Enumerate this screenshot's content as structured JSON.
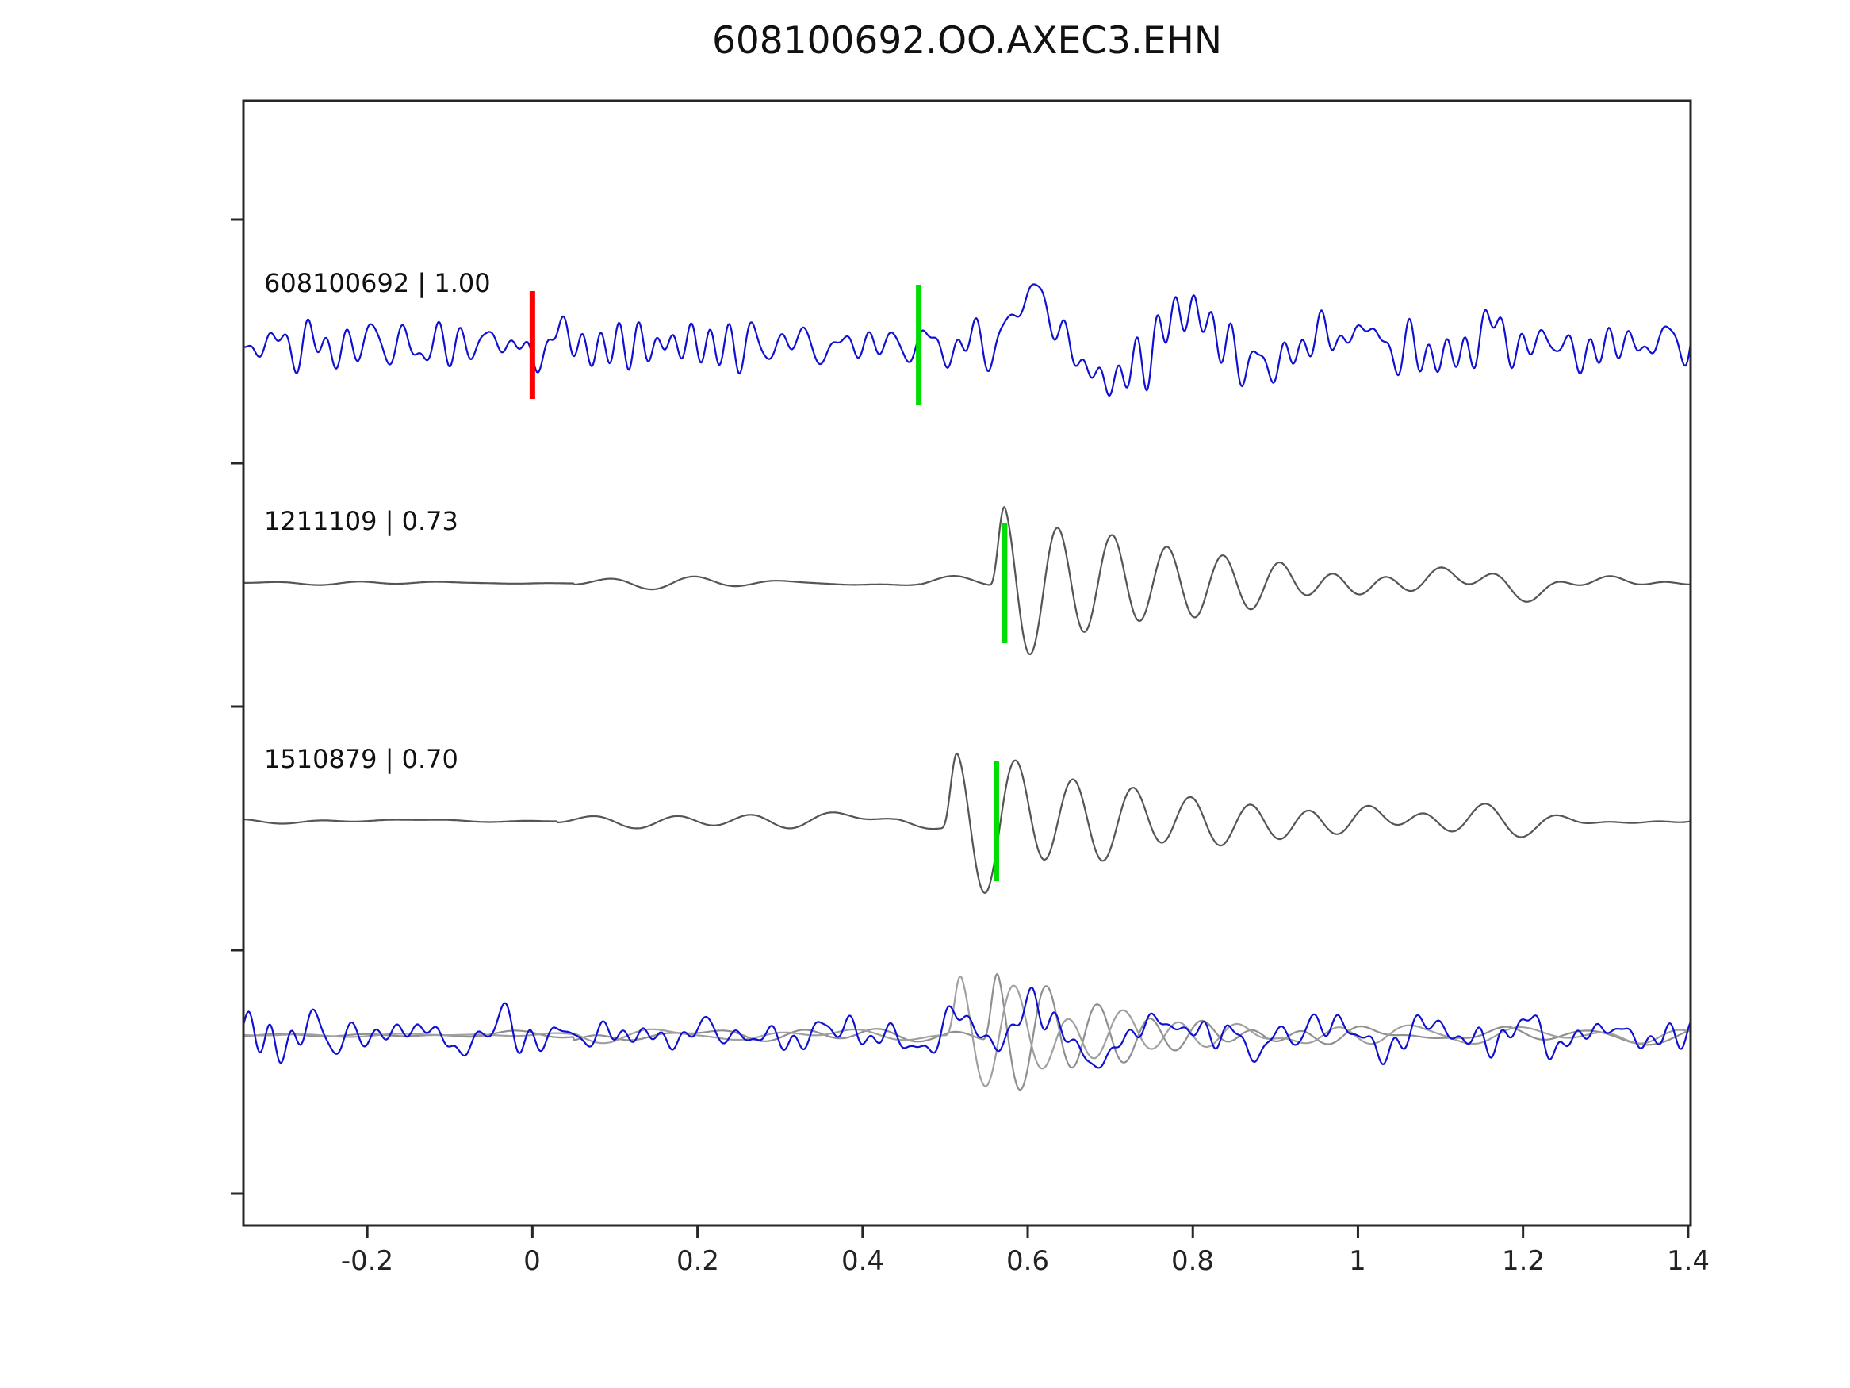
{
  "header": {
    "title": "608100692.OO.AXEC3.EHN"
  },
  "chart_data": {
    "type": "line",
    "title": "608100692.OO.AXEC3.EHN",
    "subtitle": "",
    "xlabel": "",
    "ylabel": "",
    "xlim": [
      -0.35,
      1.403
    ],
    "x_ticks": [
      -0.2,
      0,
      0.2,
      0.4,
      0.6,
      0.8,
      1,
      1.2,
      1.4
    ],
    "x_tick_labels": [
      "-0.2",
      "0",
      "0.2",
      "0.4",
      "0.6",
      "0.8",
      "1",
      "1.2",
      "1.4"
    ],
    "grid": false,
    "legend": "none",
    "colors": {
      "target_trace": "#1010d0",
      "template_trace": "#555555",
      "origin_pick": "#ff0000",
      "phase_pick": "#00dd00",
      "axis": "#262626"
    },
    "traces": [
      {
        "label": "608100692 | 1.00",
        "correlation": "1.00",
        "event_id": "608100692",
        "color": "#1010d0",
        "kind": "target-noise",
        "markers": [
          {
            "x": 0.0,
            "color": "#ff0000"
          },
          {
            "x": 0.468,
            "color": "#00dd00"
          }
        ],
        "gen": {
          "seed": 9,
          "n": 70,
          "f0": 5,
          "f1": 48,
          "amp": 20,
          "burst": {
            "onset": 0.555,
            "freq": 5.2,
            "amp": 80,
            "decay": 0.3,
            "rise": 0.05
          }
        }
      },
      {
        "label": "1211109 | 0.73",
        "correlation": "0.73",
        "event_id": "1211109",
        "color": "#555555",
        "kind": "template-event",
        "markers": [
          {
            "x": 0.572,
            "color": "#00dd00"
          }
        ],
        "gen": {
          "seed": 14,
          "n": 45,
          "f0": 2.5,
          "f1": 13,
          "amp": 7,
          "segments": [
            [
              -0.35,
              0.05,
              1.8
            ],
            [
              0.05,
              0.47,
              7
            ],
            [
              0.47,
              1.41,
              9
            ]
          ],
          "burst": {
            "onset": 0.553,
            "freq": 15,
            "amp": 110,
            "decay": 0.23,
            "rise": 0.02
          }
        }
      },
      {
        "label": "1510879 | 0.70",
        "correlation": "0.70",
        "event_id": "1510879",
        "color": "#555555",
        "kind": "template-event",
        "markers": [
          {
            "x": 0.562,
            "color": "#00dd00"
          }
        ],
        "gen": {
          "seed": 27,
          "n": 45,
          "f0": 2.5,
          "f1": 13,
          "amp": 7,
          "segments": [
            [
              -0.35,
              0.03,
              1.8
            ],
            [
              0.03,
              0.44,
              7.5
            ],
            [
              0.44,
              1.41,
              9
            ]
          ],
          "burst": {
            "onset": 0.495,
            "freq": 14,
            "amp": 100,
            "decay": 0.26,
            "rise": 0.02
          }
        }
      },
      {
        "label": "",
        "kind": "overlay",
        "markers": [],
        "series": [
          {
            "color": "#8f8f8f",
            "gen": {
              "seed": 33,
              "n": 45,
              "f0": 2.5,
              "f1": 12,
              "amp": 6,
              "segments": [
                [
                  -0.35,
                  0.05,
                  2
                ],
                [
                  0.05,
                  0.5,
                  6
                ],
                [
                  0.5,
                  1.41,
                  9
                ]
              ],
              "burst": {
                "onset": 0.545,
                "freq": 16,
                "amp": 100,
                "decay": 0.14,
                "rise": 0.02
              }
            }
          },
          {
            "color": "#a0a0a0",
            "gen": {
              "seed": 44,
              "n": 45,
              "f0": 2.5,
              "f1": 12,
              "amp": 6,
              "segments": [
                [
                  -0.35,
                  0.05,
                  2
                ],
                [
                  0.05,
                  0.5,
                  6
                ],
                [
                  0.5,
                  1.41,
                  8
                ]
              ],
              "burst": {
                "onset": 0.5,
                "freq": 15,
                "amp": 88,
                "decay": 0.16,
                "rise": 0.02
              }
            }
          },
          {
            "color": "#1010d0",
            "gen": {
              "seed": 52,
              "n": 70,
              "f0": 5,
              "f1": 48,
              "amp": 17,
              "burst": {
                "onset": 0.55,
                "freq": 5.5,
                "amp": 45,
                "decay": 0.25,
                "rise": 0.05
              }
            }
          }
        ]
      }
    ]
  }
}
